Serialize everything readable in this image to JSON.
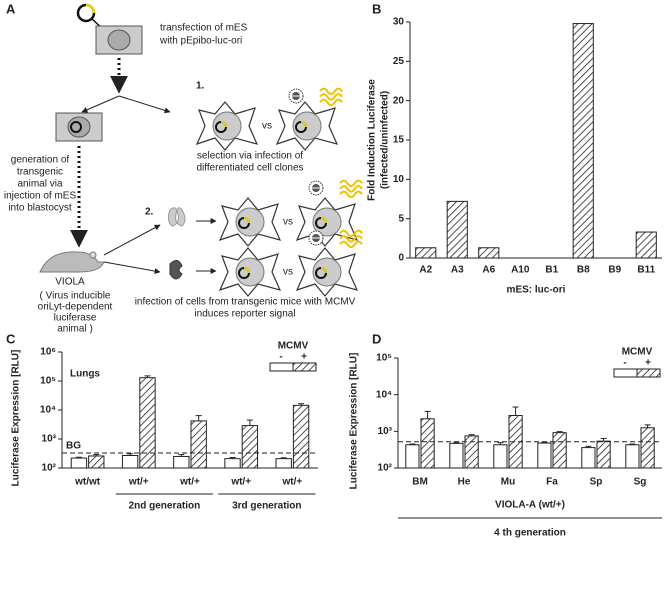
{
  "diagram": {
    "panel": "A",
    "texts": [
      "transfection of mES",
      "with pEpibo-luc-ori",
      "1.",
      "vs",
      "selection via infection of",
      "differentiated cell clones",
      "generation of",
      "transgenic",
      "animal via",
      "injection of mES",
      "into blastocyst",
      "VIOLA",
      "( Virus inducible",
      "oriLyt-dependent",
      "luciferase",
      "animal )",
      "2.",
      "vs",
      "vs",
      "infection of cells from transgenic mice with MCMV",
      "induces reporter signal"
    ]
  },
  "chart_data": [
    {
      "type": "bar",
      "panel": "B",
      "ylabel": [
        "Fold Induction Luciferase",
        "(infected/uninfected)"
      ],
      "xlabel": "mES: luc-ori",
      "categories": [
        "A2",
        "A3",
        "A6",
        "A10",
        "B1",
        "B8",
        "B9",
        "B11"
      ],
      "values": [
        1.3,
        7.2,
        1.3,
        0,
        0,
        29.8,
        0,
        3.3
      ],
      "ylim": [
        0,
        30
      ],
      "yticks": [
        0,
        5,
        10,
        15,
        20,
        25,
        30
      ],
      "color": "#222"
    },
    {
      "type": "grouped_bar",
      "panel": "C",
      "ylabel": "Luciferase Expression [RLU]",
      "annotation": "Lungs",
      "log_scale": true,
      "categories": [
        "wt/wt",
        "wt/+",
        "wt/+",
        "wt/+",
        "wt/+"
      ],
      "group_labels": [
        "2nd generation",
        "3rd generation"
      ],
      "legend_title": "MCMV",
      "series": [
        {
          "name": "-",
          "color": "#ffffff",
          "values": [
            220,
            270,
            250,
            210,
            210
          ],
          "errors": [
            15,
            40,
            40,
            20,
            15
          ]
        },
        {
          "name": "+",
          "color": "hatch",
          "values": [
            260,
            130000,
            4200,
            2900,
            14500
          ],
          "errors": [
            30,
            20000,
            2200,
            1600,
            2000
          ]
        }
      ],
      "reference_line": 330,
      "reference_label": "BG",
      "ylim": [
        100,
        1000000
      ],
      "yticks": [
        {
          "value": 100,
          "label": "10²"
        },
        {
          "value": 1000,
          "label": "10³"
        },
        {
          "value": 10000,
          "label": "10⁴"
        },
        {
          "value": 100000,
          "label": "10⁵"
        },
        {
          "value": 1000000,
          "label": "10⁶"
        }
      ]
    },
    {
      "type": "grouped_bar",
      "panel": "D",
      "ylabel": "Luciferase Expression [RLU]",
      "xlabel": "VIOLA-A (wt/+)",
      "subtitle": "4 th generation",
      "log_scale": true,
      "categories": [
        "BM",
        "He",
        "Mu",
        "Fa",
        "Sp",
        "Sg"
      ],
      "legend_title": "MCMV",
      "series": [
        {
          "name": "-",
          "color": "#ffffff",
          "values": [
            430,
            470,
            430,
            480,
            360,
            430
          ],
          "errors": [
            20,
            30,
            60,
            20,
            30,
            20
          ]
        },
        {
          "name": "+",
          "color": "hatch",
          "values": [
            2200,
            750,
            2700,
            920,
            540,
            1250
          ],
          "errors": [
            1300,
            60,
            1900,
            60,
            100,
            250
          ]
        }
      ],
      "reference_line": 520,
      "ylim": [
        100,
        100000
      ],
      "yticks": [
        {
          "value": 100,
          "label": "10²"
        },
        {
          "value": 1000,
          "label": "10³"
        },
        {
          "value": 10000,
          "label": "10⁴"
        },
        {
          "value": 100000,
          "label": "10⁵"
        }
      ]
    }
  ]
}
